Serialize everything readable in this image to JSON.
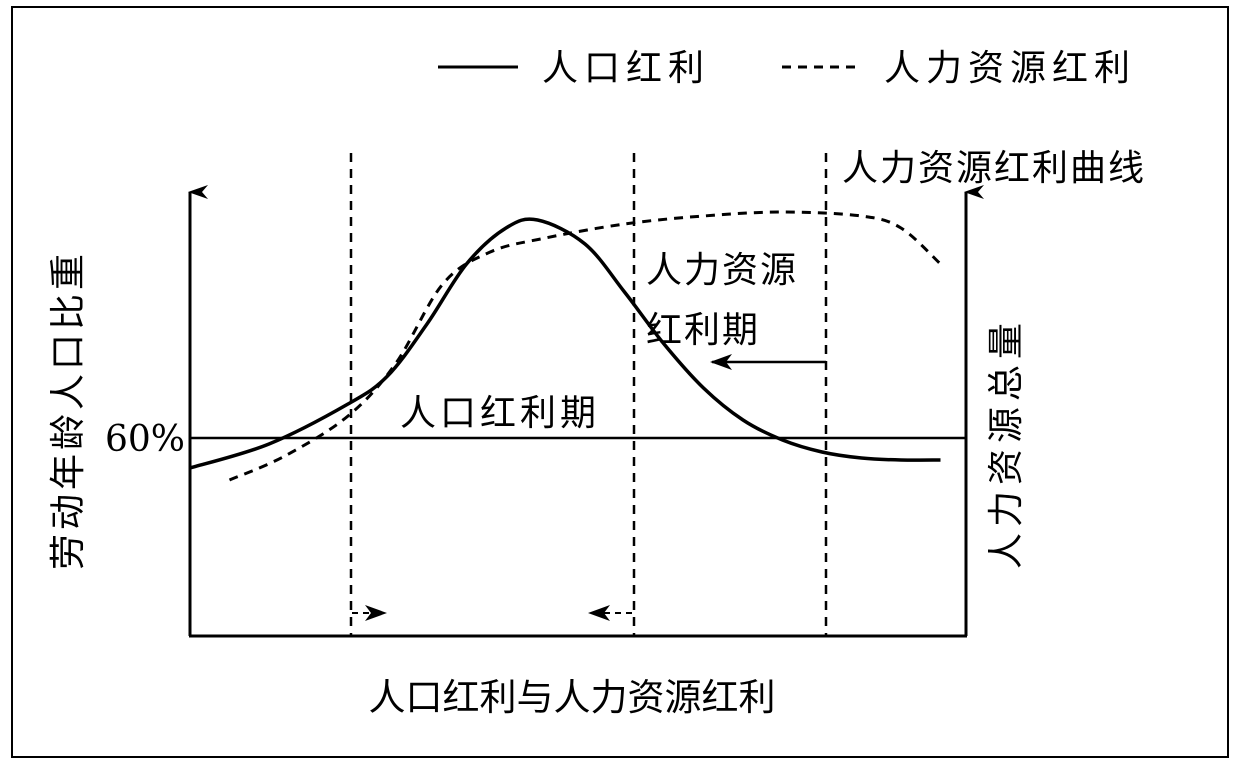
{
  "chart_data": {
    "type": "line",
    "title": "人口红利与人力资源红利",
    "ylabel_left": "劳动年龄人口比重",
    "ylabel_right": "人力资源总量",
    "threshold": {
      "label": "60%",
      "value": 60
    },
    "legend": [
      {
        "name": "人口红利",
        "style": "solid"
      },
      {
        "name": "人力资源红利",
        "style": "dashed"
      }
    ],
    "legend_position": "top-right",
    "series": [
      {
        "name": "人口红利",
        "style": "solid",
        "points": [
          [
            0,
            42
          ],
          [
            10,
            48
          ],
          [
            20,
            58
          ],
          [
            25,
            65
          ],
          [
            30,
            78
          ],
          [
            35,
            93
          ],
          [
            40,
            102
          ],
          [
            44,
            104
          ],
          [
            50,
            98
          ],
          [
            55,
            86
          ],
          [
            60,
            73
          ],
          [
            65,
            62
          ],
          [
            70,
            54
          ],
          [
            75,
            49
          ],
          [
            80,
            46
          ],
          [
            85,
            44.5
          ],
          [
            90,
            44
          ],
          [
            95,
            44
          ]
        ]
      },
      {
        "name": "人力资源红利",
        "style": "dashed",
        "points": [
          [
            5,
            39
          ],
          [
            12,
            45
          ],
          [
            20,
            55
          ],
          [
            26,
            68
          ],
          [
            32,
            88
          ],
          [
            38,
            96
          ],
          [
            45,
            99.5
          ],
          [
            55,
            103
          ],
          [
            65,
            105
          ],
          [
            75,
            106
          ],
          [
            85,
            105
          ],
          [
            90,
            102
          ],
          [
            95,
            93
          ]
        ]
      }
    ],
    "annotations": {
      "curve_label": "人力资源红利曲线",
      "period1": "人口红利期",
      "period2_line1": "人力资源",
      "period2_line2": "红利期"
    }
  }
}
